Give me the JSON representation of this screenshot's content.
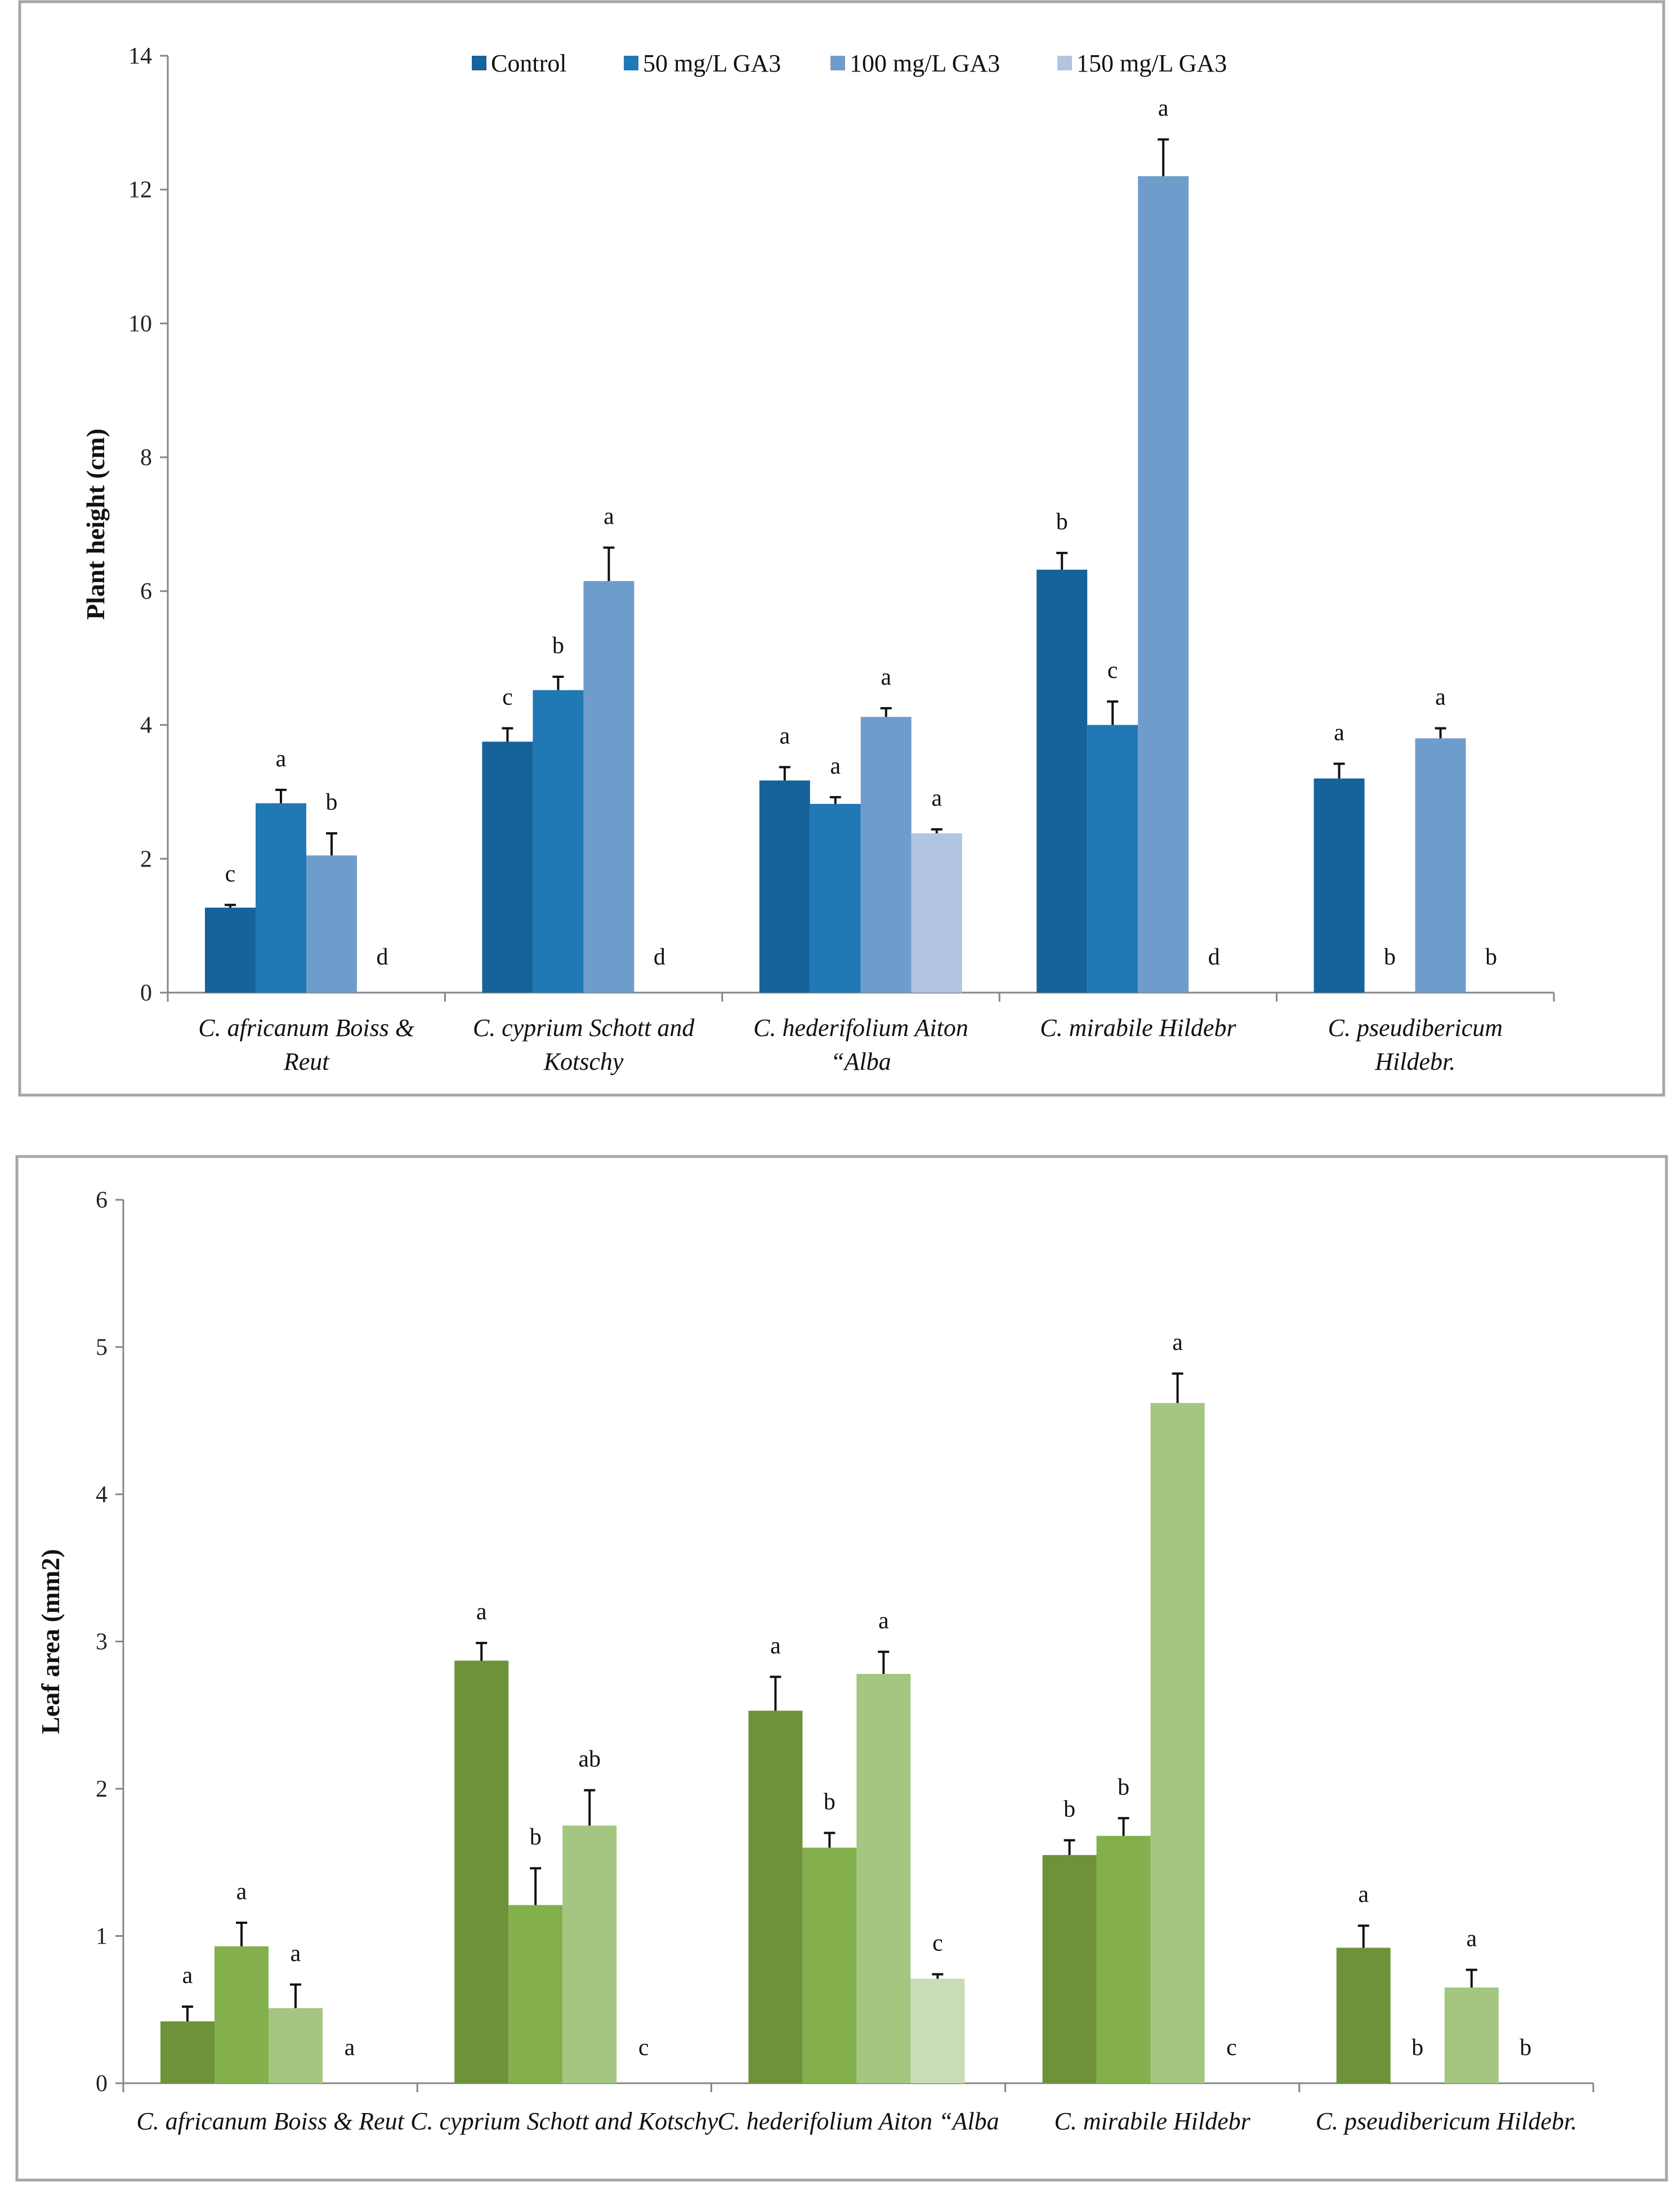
{
  "chart_data": [
    {
      "type": "bar",
      "title": "",
      "xlabel": "",
      "ylabel": "Plant height (cm)",
      "ylim": [
        0,
        14
      ],
      "yticks": [
        0,
        2,
        4,
        6,
        8,
        10,
        12,
        14
      ],
      "legend_position": "top-center",
      "categories": [
        [
          "C. africanum Boiss & ",
          "Reut"
        ],
        [
          "C. cyprium Schott and",
          "Kotschy"
        ],
        [
          "C. hederifolium Aiton",
          "“Alba"
        ],
        [
          "C. mirabile Hildebr"
        ],
        [
          "C. pseudibericum",
          "Hildebr."
        ]
      ],
      "series": [
        {
          "name": "Control",
          "color": "#15639a",
          "values": [
            1.27,
            3.75,
            3.17,
            6.32,
            3.2
          ],
          "errors": [
            0.04,
            0.2,
            0.2,
            0.25,
            0.22
          ],
          "letters": [
            "c",
            "c",
            "a",
            "b",
            "a"
          ]
        },
        {
          "name": "50 mg/L GA3",
          "color": "#2078b5",
          "values": [
            2.83,
            4.52,
            2.82,
            4.0,
            0
          ],
          "errors": [
            0.2,
            0.2,
            0.1,
            0.35,
            0
          ],
          "letters": [
            "a",
            "b",
            "a",
            "c",
            "b"
          ]
        },
        {
          "name": "100 mg/L GA3",
          "color": "#6f9dcb",
          "values": [
            2.05,
            6.15,
            4.12,
            12.2,
            3.8
          ],
          "errors": [
            0.33,
            0.5,
            0.13,
            0.55,
            0.15
          ],
          "letters": [
            "b",
            "a",
            "a",
            "a",
            "a"
          ]
        },
        {
          "name": "150 mg/L GA3",
          "color": "#b1c5e0",
          "values": [
            0,
            0,
            2.38,
            0,
            0
          ],
          "errors": [
            0,
            0,
            0.06,
            0,
            0
          ],
          "letters": [
            "d",
            "d",
            "a",
            "d",
            "b"
          ]
        }
      ]
    },
    {
      "type": "bar",
      "title": "",
      "xlabel": "",
      "ylabel": "Leaf area (mm2)",
      "ylim": [
        0,
        6
      ],
      "yticks": [
        0,
        1,
        2,
        3,
        4,
        5,
        6
      ],
      "legend_position": "none",
      "categories": [
        [
          "C. africanum Boiss & Reut"
        ],
        [
          "C. cyprium Schott and Kotschy"
        ],
        [
          "C. hederifolium Aiton “Alba"
        ],
        [
          "C. mirabile Hildebr"
        ],
        [
          "C. pseudibericum Hildebr."
        ]
      ],
      "series": [
        {
          "name": "Control",
          "color": "#6e923a",
          "values": [
            0.42,
            2.87,
            2.53,
            1.55,
            0.92
          ],
          "errors": [
            0.1,
            0.12,
            0.23,
            0.1,
            0.15
          ],
          "letters": [
            "a",
            "a",
            "a",
            "b",
            "a"
          ]
        },
        {
          "name": "50 mg/L GA3",
          "color": "#83b04d",
          "values": [
            0.93,
            1.21,
            1.6,
            1.68,
            0
          ],
          "errors": [
            0.16,
            0.25,
            0.1,
            0.12,
            0
          ],
          "letters": [
            "a",
            "b",
            "b",
            "b",
            "b"
          ]
        },
        {
          "name": "100 mg/L GA3",
          "color": "#a4c680",
          "values": [
            0.51,
            1.75,
            2.78,
            4.62,
            0.65
          ],
          "errors": [
            0.16,
            0.24,
            0.15,
            0.2,
            0.12
          ],
          "letters": [
            "a",
            "ab",
            "a",
            "a",
            "a"
          ]
        },
        {
          "name": "150 mg/L GA3",
          "color": "#c9dcb5",
          "values": [
            0,
            0,
            0.71,
            0,
            0
          ],
          "errors": [
            0,
            0,
            0.03,
            0,
            0
          ],
          "letters": [
            "a",
            "c",
            "c",
            "c",
            "b"
          ]
        }
      ]
    }
  ]
}
